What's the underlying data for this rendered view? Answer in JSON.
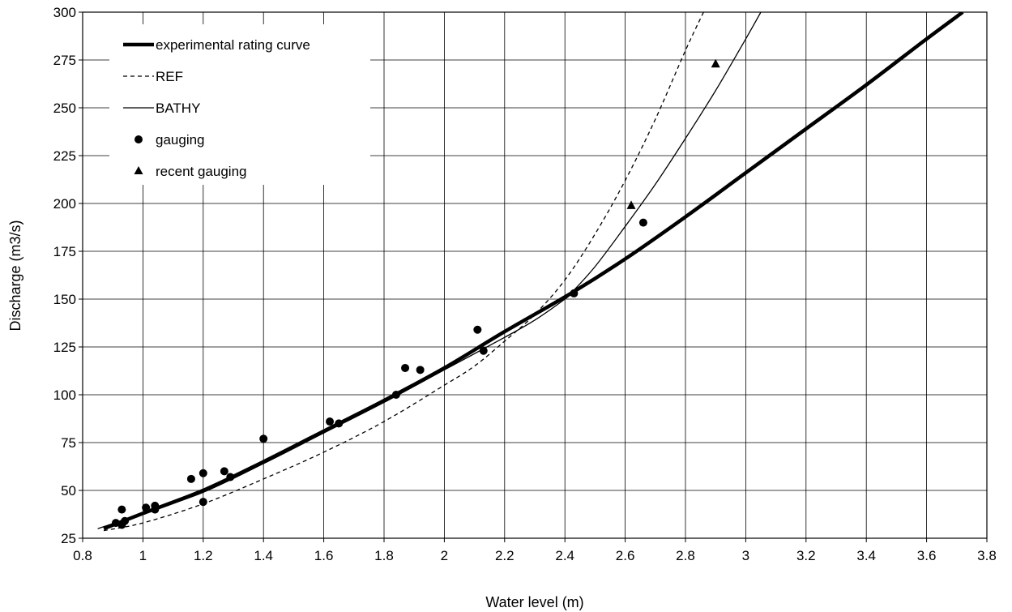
{
  "chart_data": {
    "type": "scatter",
    "title": "",
    "xlabel": "Water level (m)",
    "ylabel": "Discharge (m3/s)",
    "xlim": [
      0.8,
      3.8
    ],
    "ylim": [
      25,
      300
    ],
    "x_ticks": [
      "0.8",
      "1",
      "1.2",
      "1.4",
      "1.6",
      "1.8",
      "2",
      "2.2",
      "2.4",
      "2.6",
      "2.8",
      "3",
      "3.2",
      "3.4",
      "3.6",
      "3.8"
    ],
    "y_ticks": [
      "25",
      "50",
      "75",
      "100",
      "125",
      "150",
      "175",
      "200",
      "225",
      "250",
      "275",
      "300"
    ],
    "grid": true,
    "legend_position": "top-left",
    "series": [
      {
        "name": "experimental rating curve",
        "style": "thick-solid",
        "x": [
          0.87,
          1.0,
          1.2,
          1.4,
          1.6,
          1.8,
          2.0,
          2.2,
          2.42,
          2.6,
          2.8,
          3.0,
          3.2,
          3.4,
          3.6,
          3.72
        ],
        "y": [
          30,
          38,
          50,
          65,
          81,
          97,
          114,
          133,
          153,
          171,
          193,
          216,
          239,
          262,
          286,
          300
        ]
      },
      {
        "name": "REF",
        "style": "dashed",
        "x": [
          0.87,
          1.0,
          1.2,
          1.4,
          1.6,
          1.8,
          2.0,
          2.1,
          2.2,
          2.3,
          2.4,
          2.5,
          2.6,
          2.7,
          2.8,
          2.86
        ],
        "y": [
          29,
          33,
          43,
          56,
          70,
          86,
          105,
          115,
          128,
          142,
          160,
          184,
          212,
          244,
          280,
          300
        ]
      },
      {
        "name": "BATHY",
        "style": "thin-solid",
        "x": [
          0.85,
          1.0,
          1.2,
          1.4,
          1.6,
          1.8,
          2.0,
          2.2,
          2.3,
          2.4,
          2.42,
          2.5,
          2.6,
          2.7,
          2.8,
          2.9,
          3.0,
          3.05
        ],
        "y": [
          30,
          38,
          49,
          64,
          80,
          96,
          113,
          130,
          139,
          150,
          153,
          167,
          188,
          210,
          234,
          259,
          286,
          300
        ]
      },
      {
        "name": "gauging",
        "style": "circle-marker",
        "x": [
          0.91,
          0.93,
          0.93,
          0.94,
          1.01,
          1.04,
          1.04,
          1.16,
          1.2,
          1.2,
          1.27,
          1.29,
          1.4,
          1.62,
          1.65,
          1.84,
          1.87,
          1.92,
          2.11,
          2.13,
          2.43,
          2.66
        ],
        "y": [
          33,
          40,
          32,
          34,
          41,
          42,
          40,
          56,
          59,
          44,
          60,
          57,
          77,
          86,
          85,
          100,
          114,
          113,
          134,
          123,
          153,
          190
        ]
      },
      {
        "name": "recent gauging",
        "style": "triangle-marker",
        "x": [
          2.62,
          2.9
        ],
        "y": [
          199,
          273
        ]
      }
    ]
  }
}
